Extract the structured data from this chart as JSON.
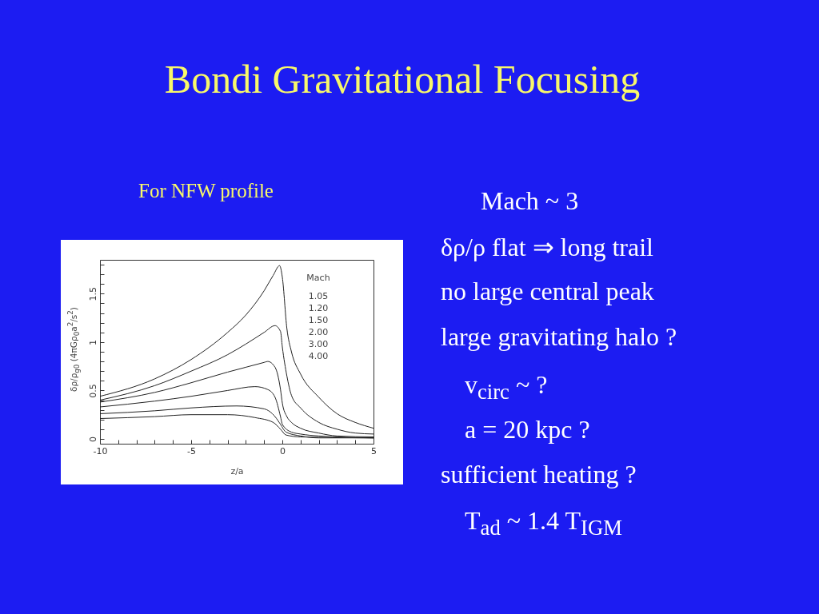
{
  "chart_data": {
    "type": "line",
    "title": "Bondi Gravitational Focusing",
    "subtitle": "For NFW profile",
    "xlabel": "z/a",
    "ylabel": "δρ/ρ$_{g0}$  (4πGρ$_{0}$a$^{2}$/s$^{2}$)",
    "xlim": [
      -10,
      5
    ],
    "ylim": [
      -0.05,
      1.85
    ],
    "xticks": [
      -10,
      {
        "value": -9,
        "label": null
      },
      {
        "value": -8,
        "label": null
      },
      {
        "value": -7,
        "label": null
      },
      {
        "value": -6,
        "label": null
      },
      -5,
      {
        "value": -4,
        "label": null
      },
      {
        "value": -3,
        "label": null
      },
      {
        "value": -2,
        "label": null
      },
      {
        "value": -1,
        "label": null
      },
      0,
      {
        "value": 1,
        "label": null
      },
      {
        "value": 2,
        "label": null
      },
      {
        "value": 3,
        "label": null
      },
      {
        "value": 4,
        "label": null
      },
      5
    ],
    "yticks": [
      0,
      {
        "value": 0.1,
        "label": null
      },
      {
        "value": 0.2,
        "label": null
      },
      {
        "value": 0.3,
        "label": null
      },
      {
        "value": 0.4,
        "label": null
      },
      0.5,
      {
        "value": 0.6,
        "label": null
      },
      {
        "value": 0.7,
        "label": null
      },
      {
        "value": 0.8,
        "label": null
      },
      {
        "value": 0.9,
        "label": null
      },
      1,
      {
        "value": 1.1,
        "label": null
      },
      {
        "value": 1.2,
        "label": null
      },
      {
        "value": 1.3,
        "label": null
      },
      {
        "value": 1.4,
        "label": null
      },
      1.5,
      {
        "value": 1.6,
        "label": null
      },
      {
        "value": 1.7,
        "label": null
      },
      {
        "value": 1.8,
        "label": null
      }
    ],
    "series": [
      {
        "color": "#222222",
        "x": [
          -10,
          -7,
          -5,
          -3,
          -2,
          -1,
          -0.5,
          -0.15,
          0,
          0.25,
          0.5,
          1,
          2,
          3,
          4,
          5
        ],
        "values": [
          0.44,
          0.62,
          0.82,
          1.1,
          1.28,
          1.53,
          1.69,
          1.79,
          1.67,
          1.14,
          0.9,
          0.67,
          0.43,
          0.26,
          0.17,
          0.11
        ]
      },
      {
        "color": "#222222",
        "x": [
          -10,
          -7,
          -5,
          -3,
          -2,
          -1,
          -0.4,
          -0.1,
          0,
          0.25,
          0.5,
          1,
          2,
          3,
          4,
          5
        ],
        "values": [
          0.4,
          0.55,
          0.7,
          0.87,
          0.98,
          1.1,
          1.17,
          1.11,
          0.95,
          0.65,
          0.45,
          0.32,
          0.17,
          0.1,
          0.06,
          0.05
        ]
      },
      {
        "color": "#222222",
        "x": [
          -10,
          -7,
          -5,
          -3,
          -2,
          -1,
          -0.8,
          -0.4,
          -0.1,
          0,
          0.25,
          0.5,
          1,
          2,
          3,
          5
        ],
        "values": [
          0.38,
          0.48,
          0.58,
          0.69,
          0.74,
          0.79,
          0.8,
          0.74,
          0.51,
          0.37,
          0.23,
          0.17,
          0.11,
          0.06,
          0.03,
          0.02
        ]
      },
      {
        "color": "#222222",
        "x": [
          -10,
          -7,
          -5,
          -3,
          -1.5,
          -0.8,
          -0.4,
          -0.1,
          0,
          0.5,
          1,
          2,
          5
        ],
        "values": [
          0.33,
          0.39,
          0.44,
          0.5,
          0.54,
          0.51,
          0.43,
          0.23,
          0.15,
          0.07,
          0.05,
          0.03,
          0.01
        ]
      },
      {
        "color": "#222222",
        "x": [
          -10,
          -7,
          -5,
          -2.5,
          -1,
          -0.4,
          -0.1,
          0.2,
          1,
          2,
          5
        ],
        "values": [
          0.26,
          0.29,
          0.32,
          0.34,
          0.31,
          0.23,
          0.15,
          0.07,
          0.03,
          0.01,
          0.01
        ]
      },
      {
        "color": "#222222",
        "x": [
          -10,
          -7,
          -5,
          -3,
          -1.5,
          -0.5,
          -0.1,
          0.2,
          1,
          5
        ],
        "values": [
          0.21,
          0.23,
          0.25,
          0.25,
          0.22,
          0.17,
          0.1,
          0.04,
          0.02,
          0.01
        ]
      }
    ],
    "annotations": [
      "Mach",
      "1.05",
      "1.20",
      "1.50",
      "2.00",
      "3.00",
      "4.00",
      "Mach  ~ 3",
      "δρ/ρ  flat ⇒ long trail",
      "no large central peak",
      "large gravitating halo ?",
      "v$_{circ}$ ~  ?",
      "a = 20 kpc ?",
      "sufficient heating ?",
      "T$_{ad}$ ~ 1.4 T$_{IGM}$"
    ]
  }
}
